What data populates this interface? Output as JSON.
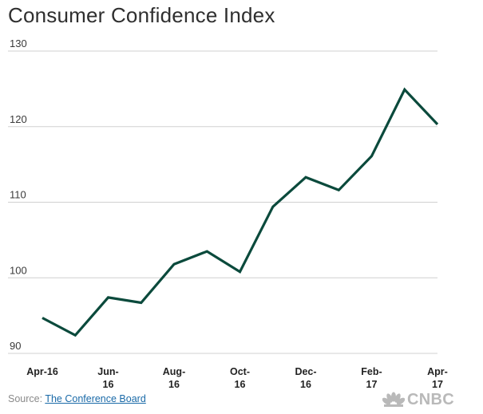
{
  "chart_data": {
    "type": "line",
    "title": "Consumer Confidence Index",
    "xlabel": "",
    "ylabel": "",
    "ylim": [
      90,
      130
    ],
    "yticks": [
      "130",
      "120",
      "110",
      "100",
      "90"
    ],
    "x_tick_labels": [
      [
        "Apr-16"
      ],
      [
        "Jun-",
        "16"
      ],
      [
        "Aug-",
        "16"
      ],
      [
        "Oct-",
        "16"
      ],
      [
        "Dec-",
        "16"
      ],
      [
        "Feb-",
        "17"
      ],
      [
        "Apr-",
        "17"
      ]
    ],
    "x": [
      "Apr-16",
      "May-16",
      "Jun-16",
      "Jul-16",
      "Aug-16",
      "Sep-16",
      "Oct-16",
      "Nov-16",
      "Dec-16",
      "Jan-17",
      "Feb-17",
      "Mar-17",
      "Apr-17"
    ],
    "series": [
      {
        "values": [
          94.7,
          92.4,
          97.4,
          96.7,
          101.8,
          103.5,
          100.8,
          109.4,
          113.3,
          111.6,
          116.1,
          124.9,
          120.3
        ],
        "color": "#0b4a3c"
      }
    ],
    "grid": true,
    "grid_color": "#d0d0d0",
    "source_prefix": "Source: ",
    "source_link": "The Conference Board"
  },
  "branding": {
    "logo_text": "CNBC",
    "logo_icon": "peacock-icon"
  }
}
